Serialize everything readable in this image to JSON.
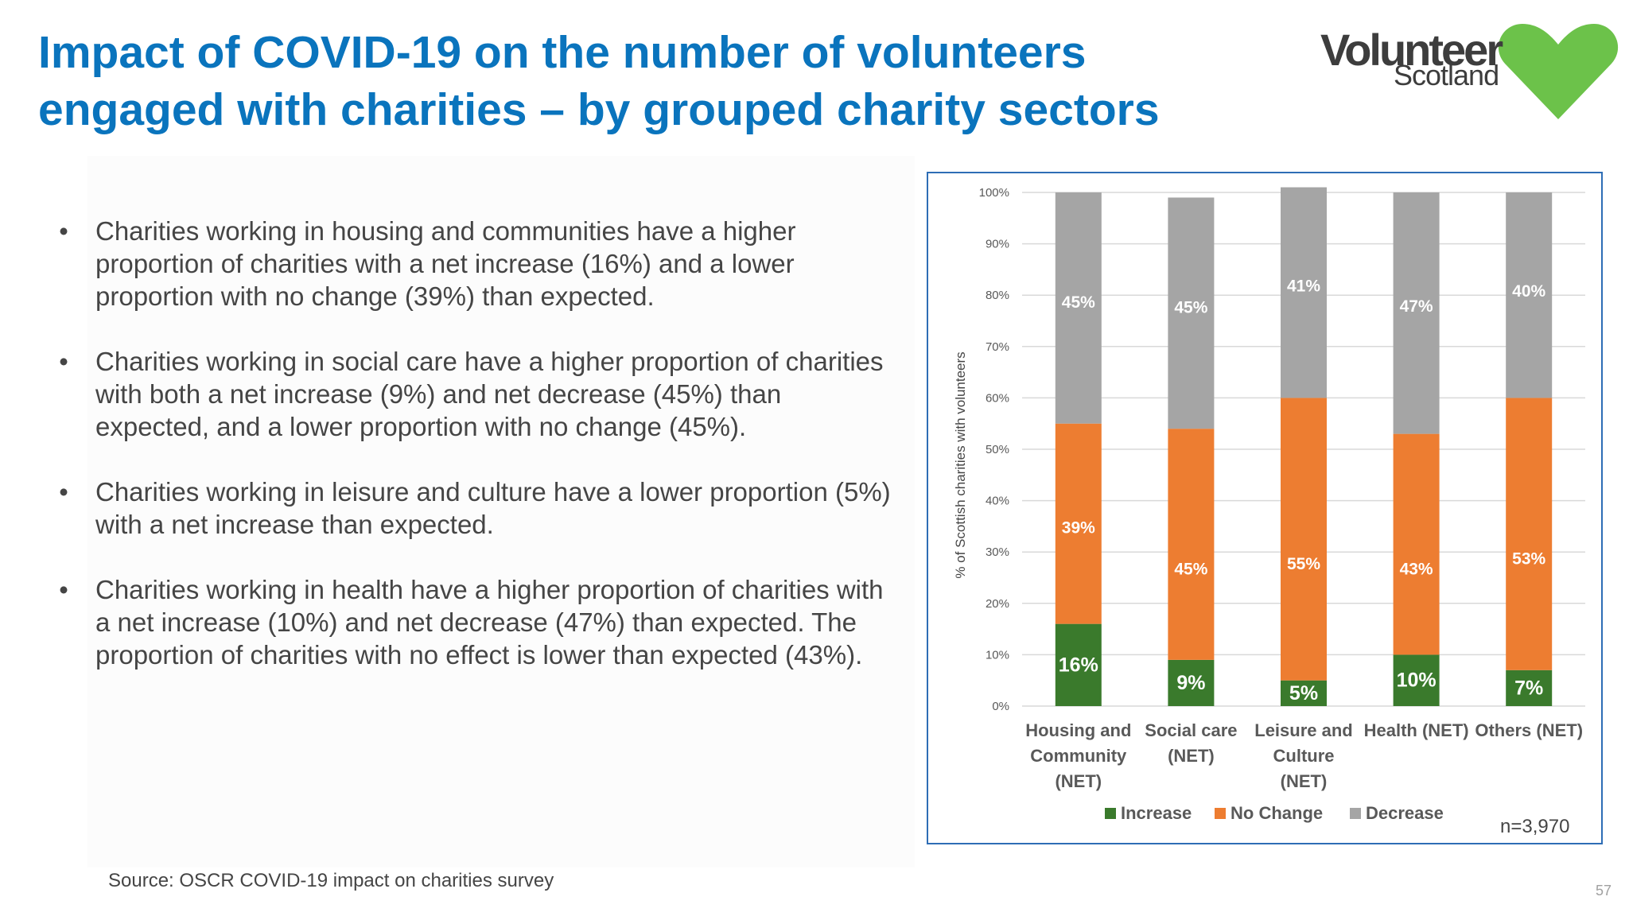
{
  "slide": {
    "title_line1": "Impact of COVID-19 on the number of volunteers",
    "title_line2": "engaged with charities – by grouped charity sectors",
    "logo": {
      "word": "Volunteer",
      "sub": "Scotland",
      "heart_color": "#6cc24a",
      "text_color": "#3d3d3d"
    },
    "bullets": [
      "Charities working in housing and communities have a higher proportion of charities with a net increase (16%) and a lower proportion with no change (39%) than expected.",
      "Charities working in social care have a higher proportion of charities with both a net increase (9%) and net decrease (45%) than expected, and a lower proportion with no change (45%).",
      "Charities working in leisure and culture have a lower proportion (5%) with a net increase than expected.",
      "Charities working in health have a higher proportion of charities with a net increase (10%) and net decrease (47%) than expected. The proportion of charities with no effect is lower than expected (43%)."
    ],
    "bullet_glyph": "•",
    "source": "Source: OSCR COVID-19 impact on charities survey",
    "page_number": "57",
    "n_label": "n=3,970",
    "colors": {
      "title": "#0a74bd",
      "frame": "#2e6db5"
    }
  },
  "chart_data": {
    "type": "bar",
    "stacked": true,
    "percent": true,
    "categories": [
      [
        "Housing and",
        "Community",
        "(NET)"
      ],
      [
        "Social care",
        "(NET)"
      ],
      [
        "Leisure and",
        "Culture",
        "(NET)"
      ],
      [
        "Health (NET)"
      ],
      [
        "Others (NET)"
      ]
    ],
    "series": [
      {
        "name": "Increase",
        "color": "#3a7a2c",
        "values": [
          16,
          9,
          5,
          10,
          7
        ],
        "labels": [
          "16%",
          "9%",
          "5%",
          "10%",
          "7%"
        ]
      },
      {
        "name": "No Change",
        "color": "#ed7d31",
        "values": [
          39,
          45,
          55,
          43,
          53
        ],
        "labels": [
          "39%",
          "45%",
          "55%",
          "43%",
          "53%"
        ]
      },
      {
        "name": "Decrease",
        "color": "#a5a5a5",
        "values": [
          45,
          45,
          41,
          47,
          40
        ],
        "labels": [
          "45%",
          "45%",
          "41%",
          "47%",
          "40%"
        ]
      }
    ],
    "ylabel": "% of Scottish charities with volunteers",
    "ylim": [
      0,
      100
    ],
    "yticks": [
      "0%",
      "10%",
      "20%",
      "30%",
      "40%",
      "50%",
      "60%",
      "70%",
      "80%",
      "90%",
      "100%"
    ],
    "grid": true,
    "legend": "bottom"
  }
}
